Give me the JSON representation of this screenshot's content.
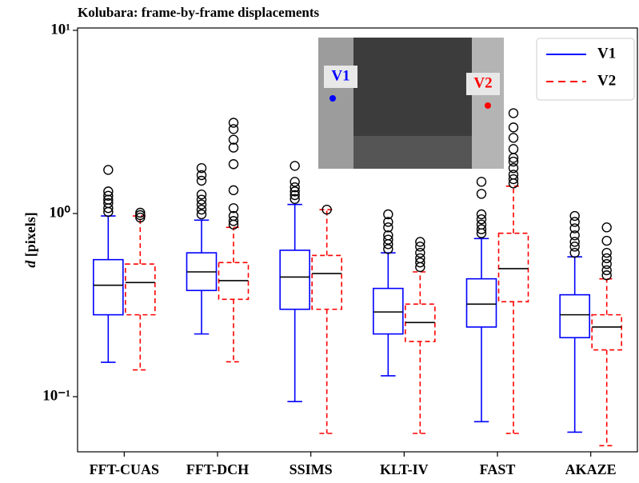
{
  "chart_data": {
    "type": "box",
    "title": "Kolubara: frame-by-frame displacements",
    "y_label": "d [pixels]",
    "categories": [
      "FFT-CUAS",
      "FFT-DCH",
      "SSIMS",
      "KLT-IV",
      "FAST",
      "AKAZE"
    ],
    "ylim": [
      0.05,
      10.3
    ],
    "y_scale": "log",
    "yticks": [
      {
        "value": 10,
        "label": "10¹"
      },
      {
        "value": 1,
        "label": "10⁰"
      },
      {
        "value": 0.1,
        "label": "10⁻¹"
      }
    ],
    "legend": "upper right",
    "series": [
      {
        "name": "V1",
        "color": "#0000ff",
        "linestyle": "solid",
        "whislo": [
          0.154,
          0.22,
          0.094,
          0.13,
          0.073,
          0.064
        ],
        "q1": [
          0.28,
          0.38,
          0.3,
          0.22,
          0.24,
          0.21
        ],
        "med": [
          0.406,
          0.48,
          0.45,
          0.29,
          0.32,
          0.28
        ],
        "q3": [
          0.56,
          0.61,
          0.63,
          0.39,
          0.44,
          0.36
        ],
        "whishi": [
          0.97,
          0.92,
          1.12,
          0.61,
          0.73,
          0.58
        ],
        "fliers": [
          [
            1.73,
            1.32,
            1.25,
            1.19,
            1.14,
            1.07,
            1.02
          ],
          [
            1.77,
            1.62,
            1.51,
            1.27,
            1.19,
            1.12,
            1.05,
            0.99
          ],
          [
            1.82,
            1.49,
            1.39,
            1.32,
            1.26,
            1.2
          ],
          [
            0.99,
            0.9,
            0.84,
            0.76,
            0.72,
            0.68,
            0.64
          ],
          [
            1.49,
            1.28,
            0.99,
            0.93,
            0.87,
            0.82,
            0.78
          ],
          [
            0.97,
            0.9,
            0.83,
            0.76,
            0.7,
            0.66,
            0.61
          ]
        ]
      },
      {
        "name": "V2",
        "color": "#ff0000",
        "linestyle": "dashed",
        "whislo": [
          0.14,
          0.155,
          0.063,
          0.063,
          0.063,
          0.054
        ],
        "q1": [
          0.28,
          0.34,
          0.3,
          0.2,
          0.33,
          0.18
        ],
        "med": [
          0.42,
          0.43,
          0.47,
          0.254,
          0.5,
          0.24
        ],
        "q3": [
          0.53,
          0.54,
          0.59,
          0.32,
          0.78,
          0.28
        ],
        "whishi": [
          0.97,
          0.84,
          1.05,
          0.48,
          1.41,
          0.44
        ],
        "fliers": [
          [
            1.01,
            0.98,
            0.95
          ],
          [
            3.13,
            2.89,
            2.53,
            2.29,
            1.86,
            1.34,
            1.07,
            0.97,
            0.91,
            0.87
          ],
          [
            1.05
          ],
          [
            0.7,
            0.66,
            0.61,
            0.57,
            0.54,
            0.51
          ],
          [
            3.53,
            2.95,
            2.59,
            2.25,
            2.01,
            1.92,
            1.77,
            1.63,
            1.54,
            1.46
          ],
          [
            0.84,
            0.71,
            0.61,
            0.57,
            0.53,
            0.49,
            0.46
          ]
        ]
      }
    ]
  }
}
